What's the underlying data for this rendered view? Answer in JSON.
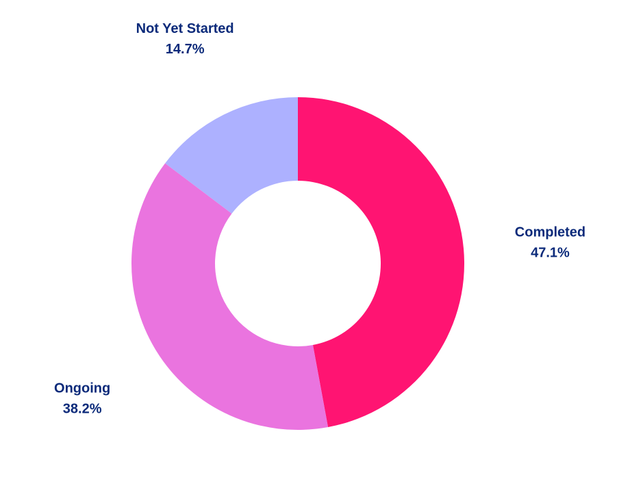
{
  "chart_data": {
    "type": "pie",
    "hole": true,
    "start": "top, clockwise",
    "labels": [
      "Completed",
      "Ongoing",
      "Not Yet Started"
    ],
    "values": [
      47.1,
      38.2,
      14.7
    ],
    "percent_labels": [
      "47.1%",
      "38.2%",
      "14.7%"
    ],
    "colors": [
      "#ff1472",
      "#ea74df",
      "#adb1ff"
    ],
    "label_color": "#0b2a7a",
    "legend": "none"
  }
}
